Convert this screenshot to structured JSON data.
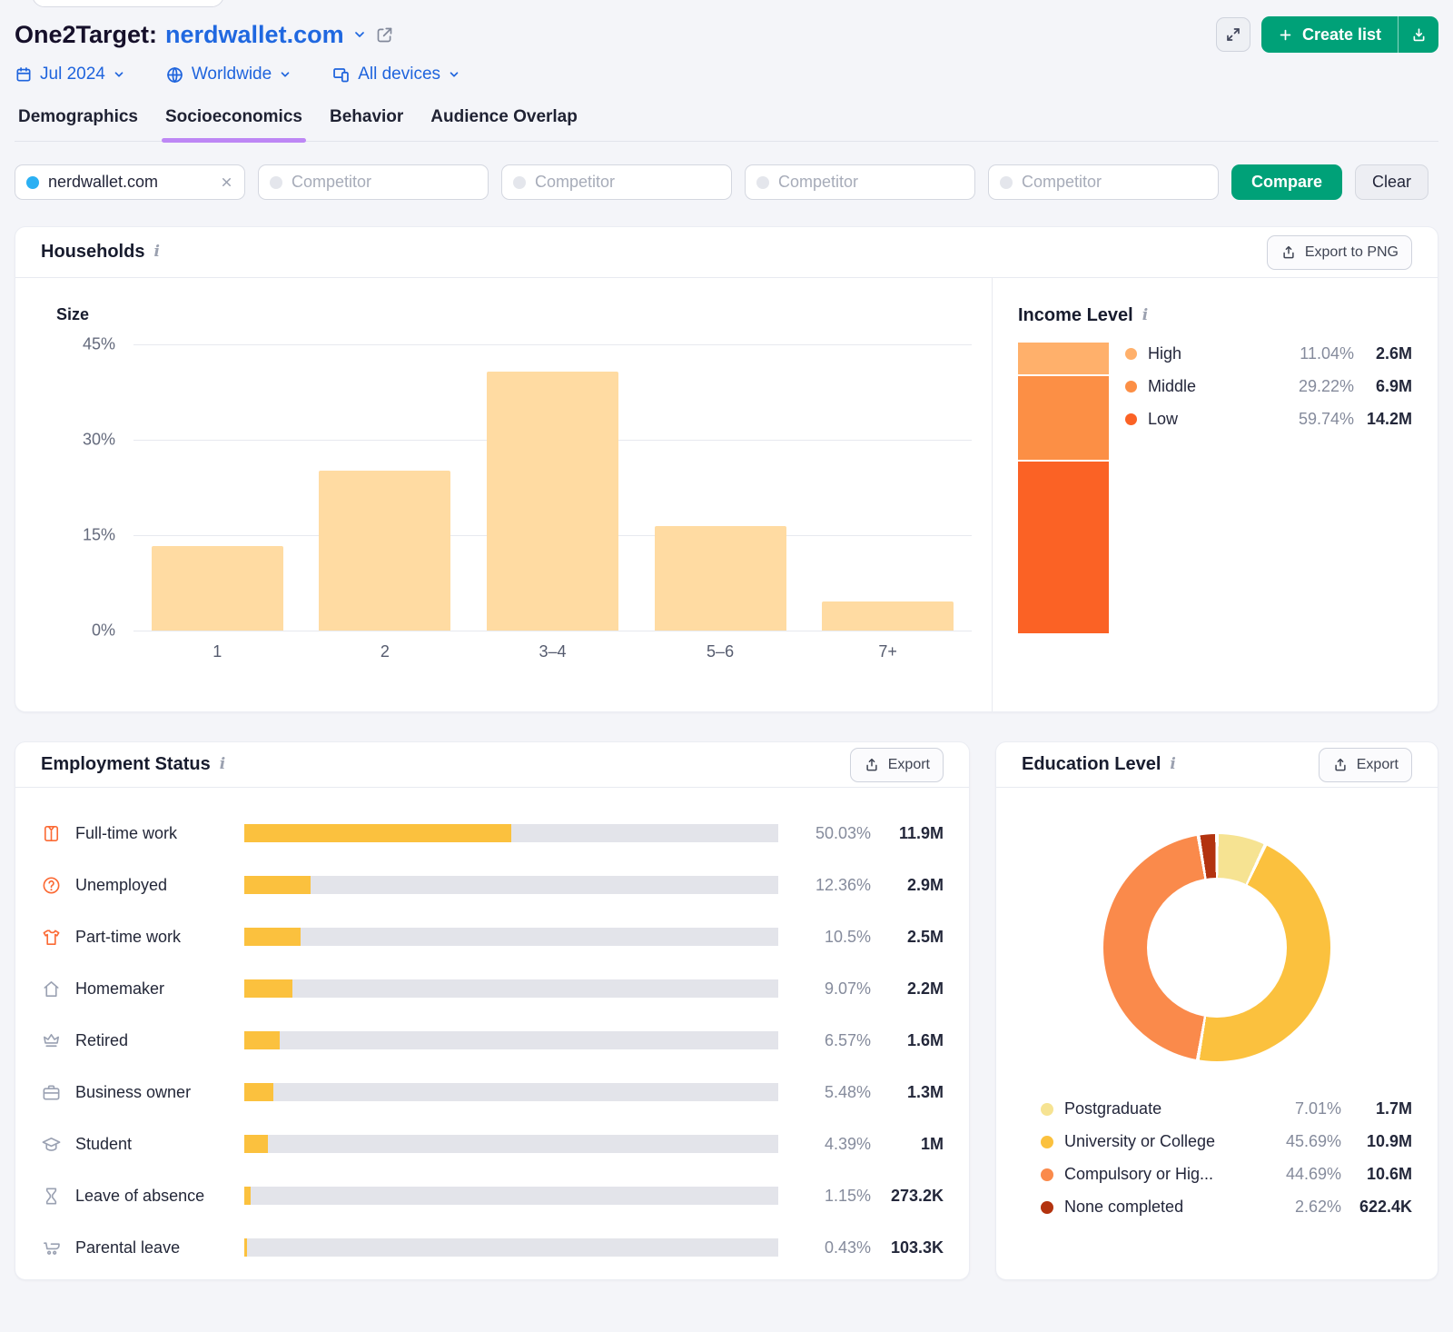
{
  "header": {
    "title_prefix": "One2Target:",
    "domain": "nerdwallet.com",
    "create_list_label": "Create list",
    "filters": {
      "date": "Jul 2024",
      "region": "Worldwide",
      "devices": "All devices"
    }
  },
  "tabs": [
    {
      "label": "Demographics",
      "active": false
    },
    {
      "label": "Socioeconomics",
      "active": true
    },
    {
      "label": "Behavior",
      "active": false
    },
    {
      "label": "Audience Overlap",
      "active": false
    }
  ],
  "compare": {
    "main_chip": "nerdwallet.com",
    "competitor_placeholder": "Competitor",
    "compare_label": "Compare",
    "clear_label": "Clear"
  },
  "households": {
    "title": "Households",
    "export_label": "Export to PNG",
    "size_label": "Size"
  },
  "income": {
    "title": "Income Level"
  },
  "employment": {
    "title": "Employment Status",
    "export_label": "Export"
  },
  "education": {
    "title": "Education Level",
    "export_label": "Export"
  },
  "colors": {
    "accent_blue": "#1f64dd",
    "brand_green": "#00a178",
    "tab_purple": "#bd87f5",
    "bar_peach": "#ffdba2",
    "bar_yellow": "#fbc13e",
    "track_gray": "#e3e4ea"
  },
  "chart_data": [
    {
      "id": "household-size",
      "type": "bar",
      "title": "Size",
      "categories": [
        "1",
        "2",
        "3–4",
        "5–6",
        "7+"
      ],
      "values": [
        13.3,
        25.1,
        40.7,
        16.4,
        4.5
      ],
      "ylim": [
        0,
        45
      ],
      "yticks": [
        "45%",
        "30%",
        "15%",
        "0%"
      ],
      "bar_color": "#ffdba2",
      "grid": true
    },
    {
      "id": "income-level",
      "type": "bar",
      "title": "Income Level",
      "stacked": true,
      "segments": [
        {
          "label": "High",
          "value": 11.04,
          "pct_label": "11.04%",
          "count": "2.6M",
          "color": "#ffb06b"
        },
        {
          "label": "Middle",
          "value": 29.22,
          "pct_label": "29.22%",
          "count": "6.9M",
          "color": "#fc8f45"
        },
        {
          "label": "Low",
          "value": 59.74,
          "pct_label": "59.74%",
          "count": "14.2M",
          "color": "#fb6225"
        }
      ]
    },
    {
      "id": "employment-status",
      "type": "bar",
      "title": "Employment Status",
      "xlim": [
        0,
        100
      ],
      "rows": [
        {
          "label": "Full-time work",
          "value": 50.03,
          "pct_label": "50.03%",
          "count": "11.9M",
          "icon": "shirt",
          "icon_color": "orange"
        },
        {
          "label": "Unemployed",
          "value": 12.36,
          "pct_label": "12.36%",
          "count": "2.9M",
          "icon": "question-circle",
          "icon_color": "orange"
        },
        {
          "label": "Part-time work",
          "value": 10.5,
          "pct_label": "10.5%",
          "count": "2.5M",
          "icon": "tshirt",
          "icon_color": "orange"
        },
        {
          "label": "Homemaker",
          "value": 9.07,
          "pct_label": "9.07%",
          "count": "2.2M",
          "icon": "home",
          "icon_color": "gray"
        },
        {
          "label": "Retired",
          "value": 6.57,
          "pct_label": "6.57%",
          "count": "1.6M",
          "icon": "crown",
          "icon_color": "gray"
        },
        {
          "label": "Business owner",
          "value": 5.48,
          "pct_label": "5.48%",
          "count": "1.3M",
          "icon": "briefcase",
          "icon_color": "gray"
        },
        {
          "label": "Student",
          "value": 4.39,
          "pct_label": "4.39%",
          "count": "1M",
          "icon": "graduation-cap",
          "icon_color": "gray"
        },
        {
          "label": "Leave of absence",
          "value": 1.15,
          "pct_label": "1.15%",
          "count": "273.2K",
          "icon": "hourglass",
          "icon_color": "gray"
        },
        {
          "label": "Parental leave",
          "value": 0.43,
          "pct_label": "0.43%",
          "count": "103.3K",
          "icon": "stroller",
          "icon_color": "gray"
        }
      ]
    },
    {
      "id": "education-level",
      "type": "pie",
      "title": "Education Level",
      "donut": true,
      "slices": [
        {
          "label": "Postgraduate",
          "value": 7.01,
          "pct_label": "7.01%",
          "count": "1.7M",
          "color": "#f6e392"
        },
        {
          "label": "University or College",
          "value": 45.69,
          "pct_label": "45.69%",
          "count": "10.9M",
          "color": "#fbc13e"
        },
        {
          "label": "Compulsory or Hig...",
          "value": 44.69,
          "pct_label": "44.69%",
          "count": "10.6M",
          "color": "#fa8a4b"
        },
        {
          "label": "None completed",
          "value": 2.62,
          "pct_label": "2.62%",
          "count": "622.4K",
          "color": "#b3330f"
        }
      ]
    }
  ]
}
